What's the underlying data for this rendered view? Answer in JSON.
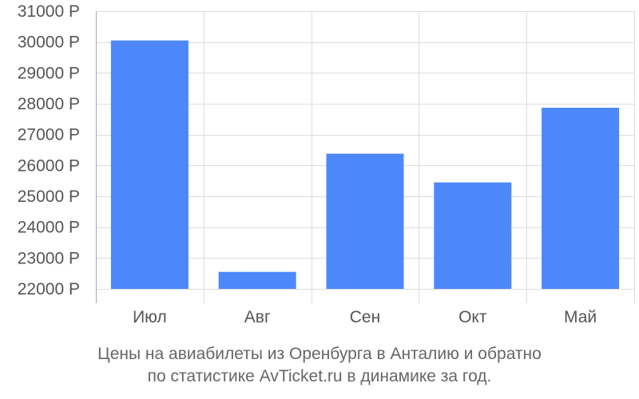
{
  "chart_data": {
    "type": "bar",
    "categories": [
      "Июл",
      "Авг",
      "Сен",
      "Окт",
      "Май"
    ],
    "values": [
      30050,
      22550,
      26380,
      25450,
      27870
    ],
    "ylim": [
      22000,
      31000
    ],
    "yticks": [
      22000,
      23000,
      24000,
      25000,
      26000,
      27000,
      28000,
      29000,
      30000,
      31000
    ],
    "ytick_labels": [
      "22000 Р",
      "23000 Р",
      "24000 Р",
      "25000 Р",
      "26000 Р",
      "27000 Р",
      "28000 Р",
      "29000 Р",
      "30000 Р",
      "31000 Р"
    ],
    "grid": true,
    "bar_color": "#4d88fa",
    "title_line1": "Цены на авиабилеты из Оренбурга в Анталию и обратно",
    "title_line2": "по статистике AvTicket.ru в динамике за год."
  }
}
